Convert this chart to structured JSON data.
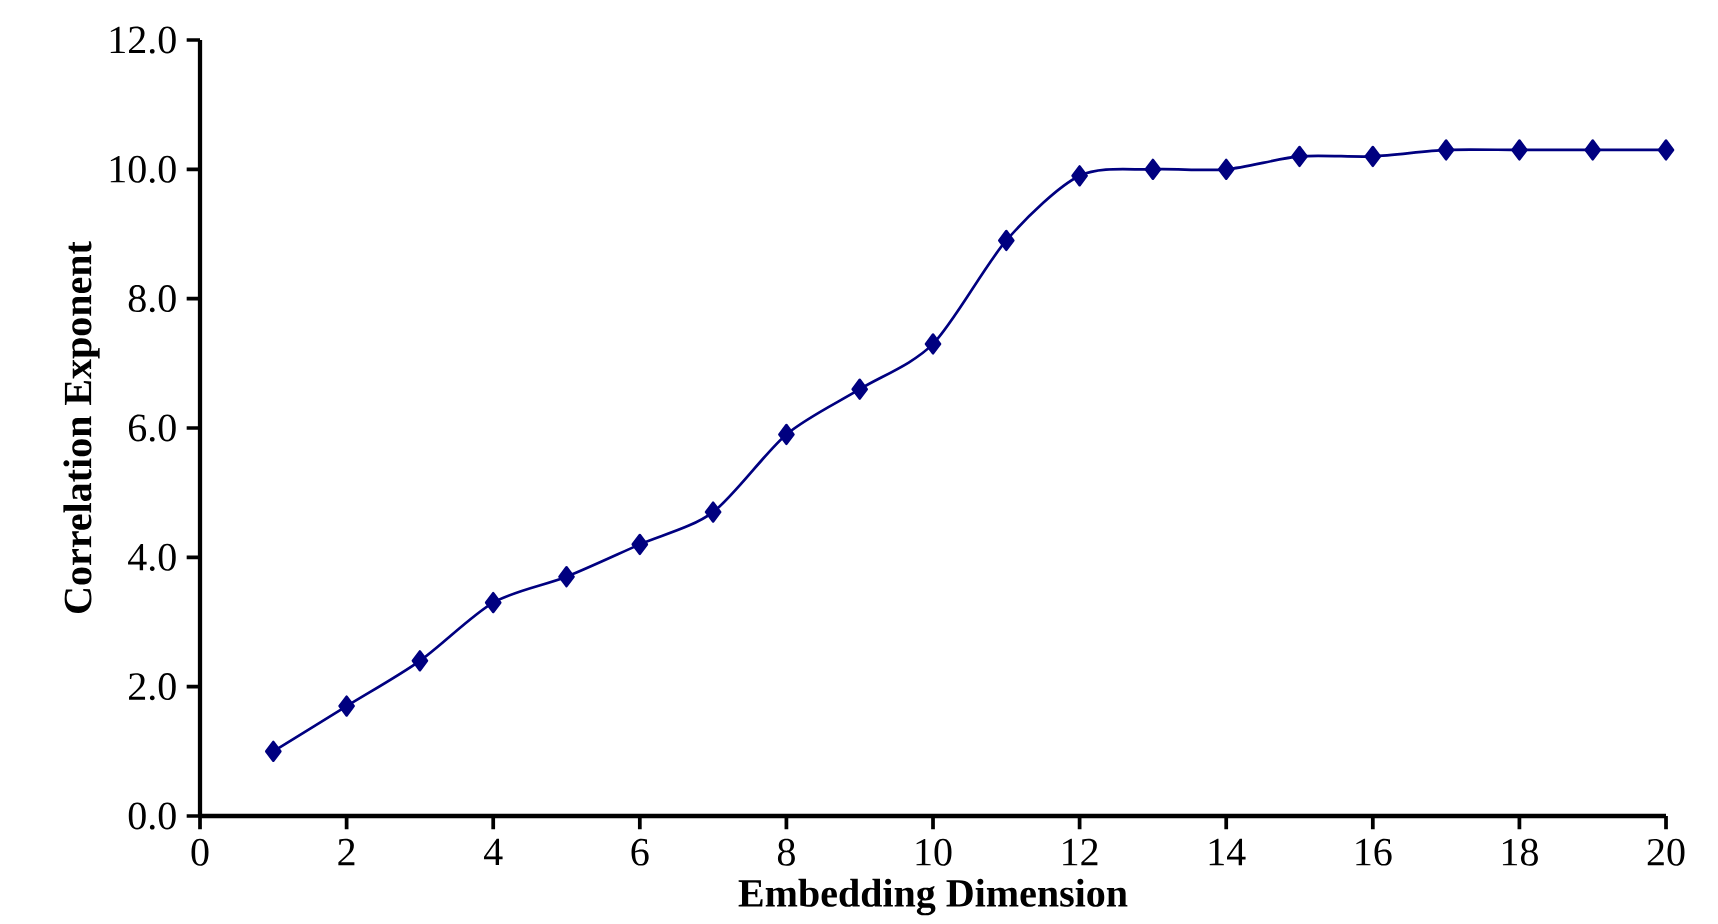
{
  "chart_data": {
    "type": "line",
    "xlabel": "Embedding Dimension",
    "ylabel": "Correlation Exponent",
    "x": [
      1,
      2,
      3,
      4,
      5,
      6,
      7,
      8,
      9,
      10,
      11,
      12,
      13,
      14,
      15,
      16,
      17,
      18,
      19,
      20
    ],
    "series": [
      {
        "color": "#000080",
        "values": [
          1.0,
          1.7,
          2.4,
          3.3,
          3.7,
          4.2,
          4.7,
          5.9,
          6.6,
          7.3,
          8.9,
          9.9,
          10.0,
          10.0,
          10.2,
          10.2,
          10.3,
          10.3,
          10.3,
          10.3
        ]
      }
    ],
    "xlim": [
      0,
      20
    ],
    "ylim": [
      0,
      12
    ],
    "xticks": [
      0,
      2,
      4,
      6,
      8,
      10,
      12,
      14,
      16,
      18,
      20
    ],
    "yticks": [
      {
        "value": 0,
        "label": "0.0"
      },
      {
        "value": 2,
        "label": "2.0"
      },
      {
        "value": 4,
        "label": "4.0"
      },
      {
        "value": 6,
        "label": "6.0"
      },
      {
        "value": 8,
        "label": "8.0"
      },
      {
        "value": 10,
        "label": "10.0"
      },
      {
        "value": 12,
        "label": "12.0"
      }
    ],
    "grid": false,
    "legend": false,
    "marker": "diamond",
    "line_style": "solid"
  }
}
